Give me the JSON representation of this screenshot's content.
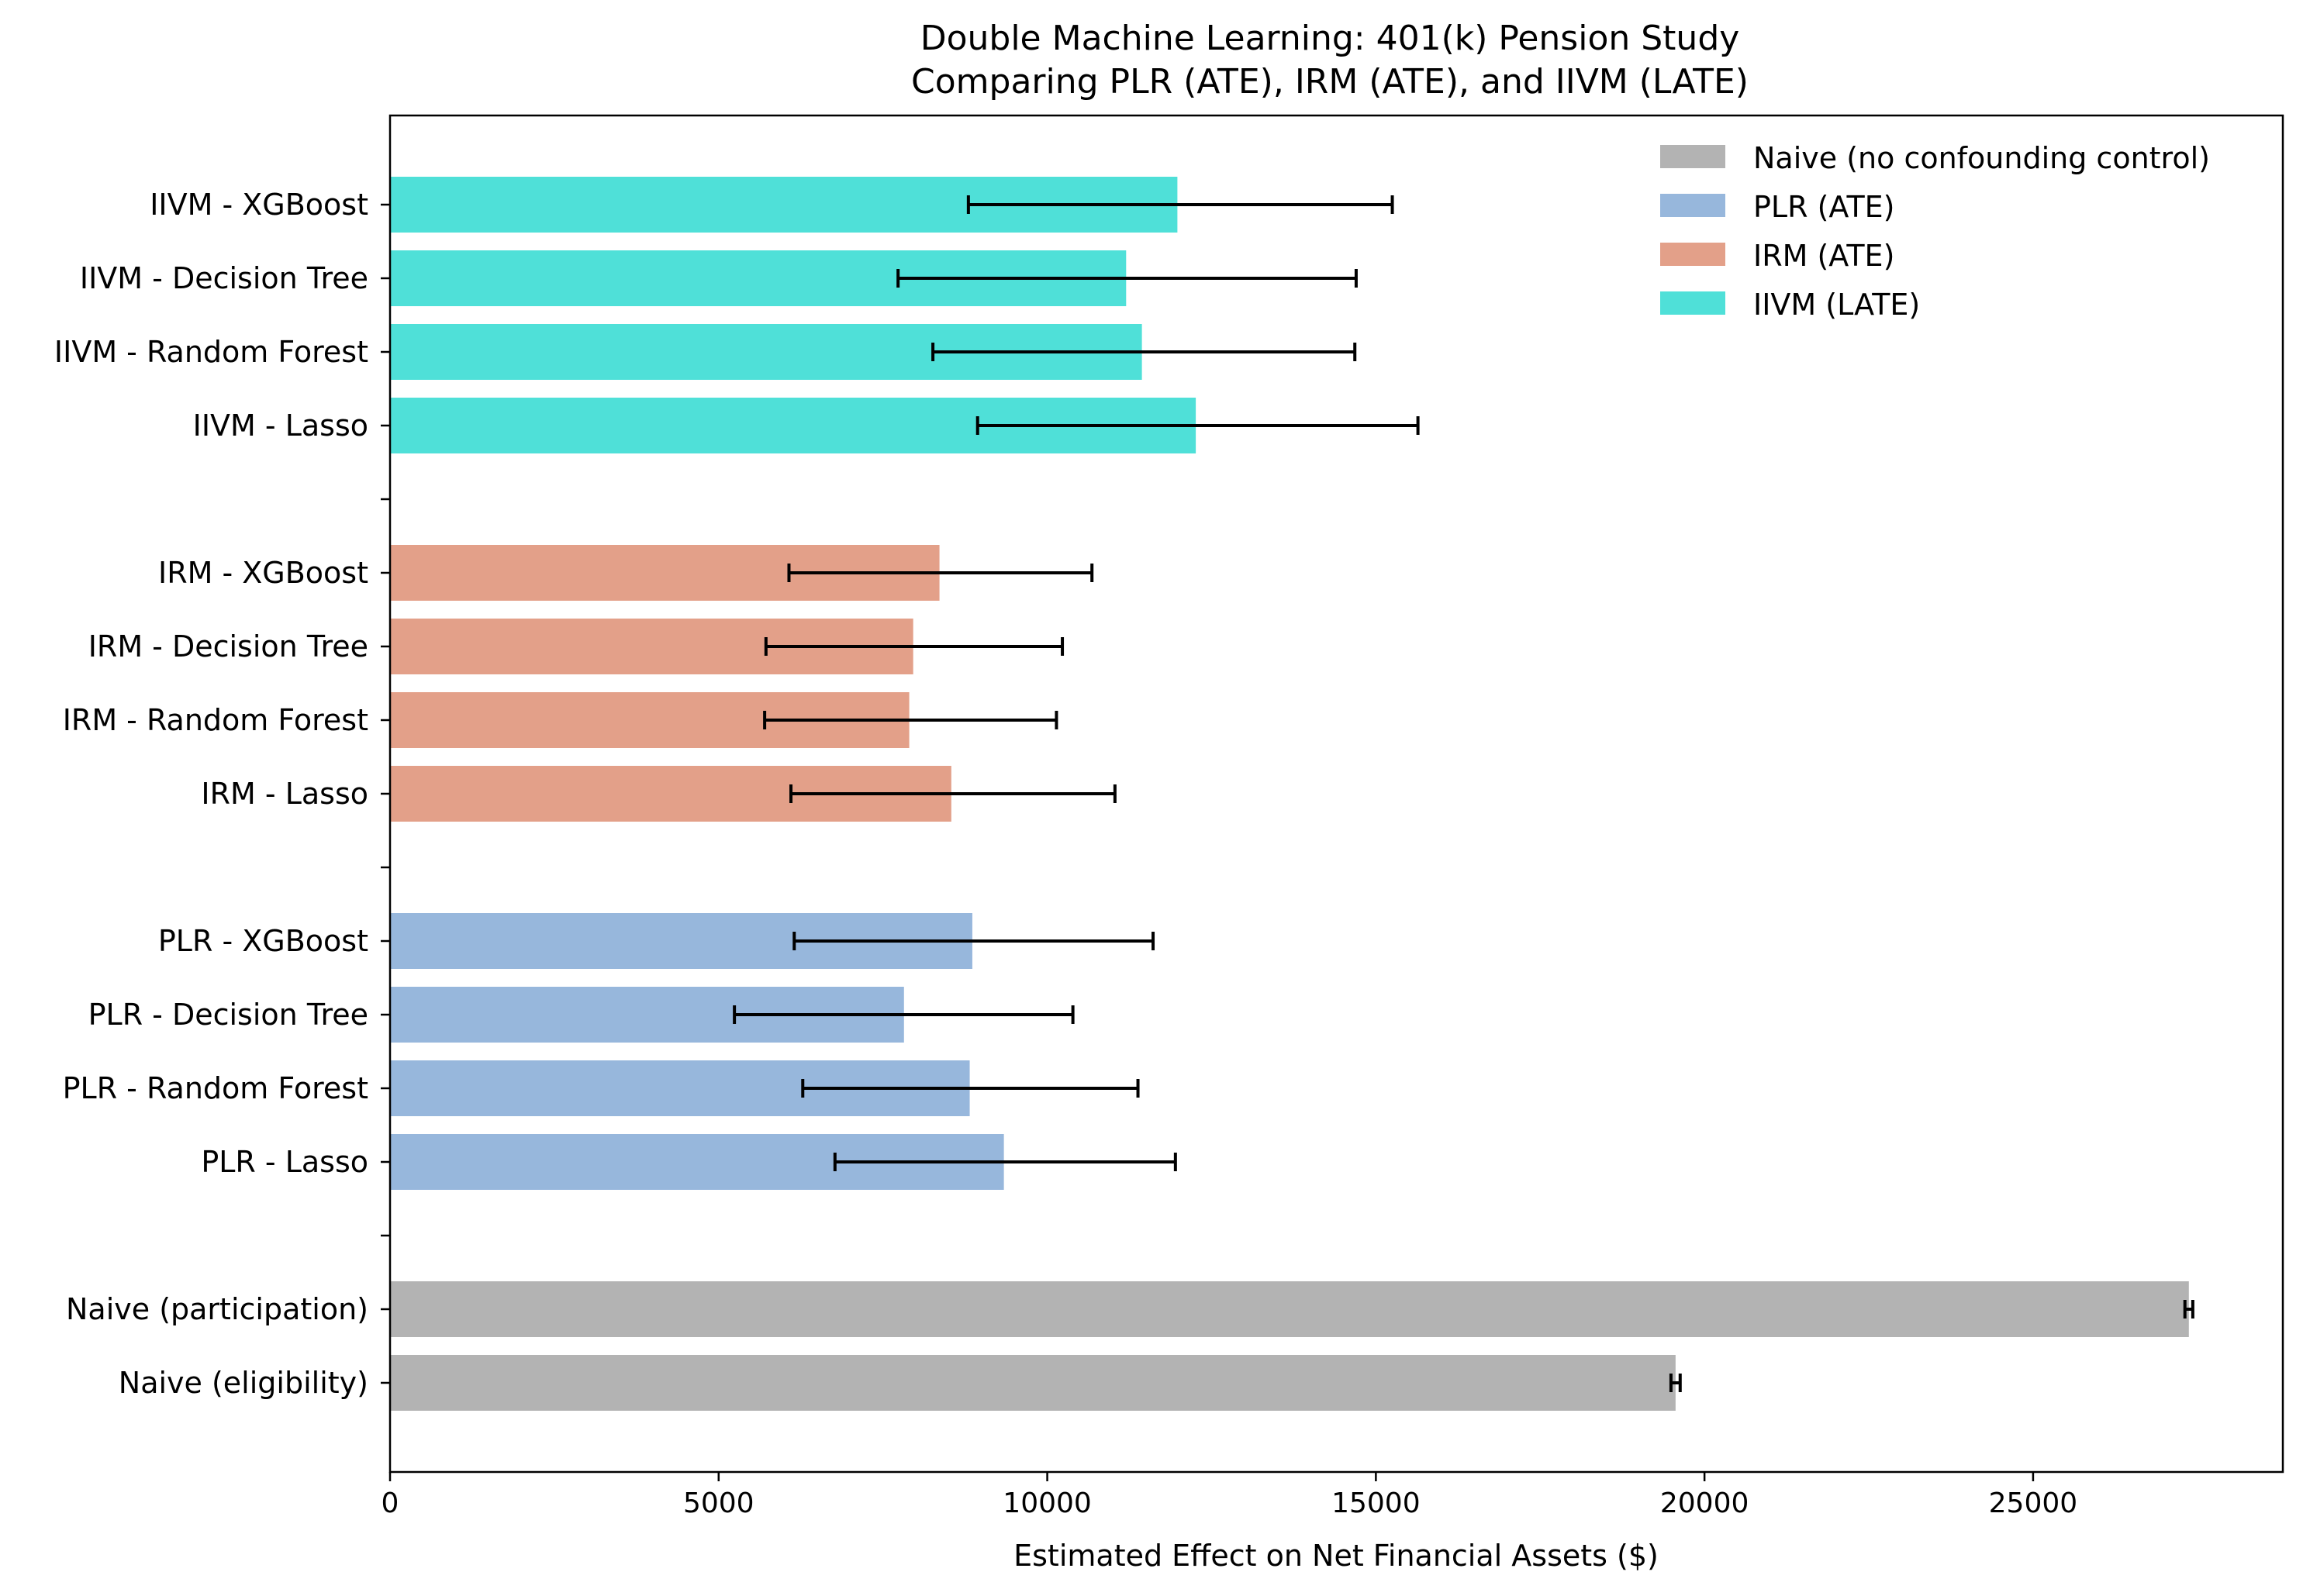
{
  "chart_data": {
    "type": "bar",
    "orientation": "horizontal",
    "title": "Double Machine Learning: 401(k) Pension Study",
    "subtitle": "Comparing PLR (ATE), IRM (ATE), and IIVM (LATE)",
    "xlabel": "Estimated Effect on Net Financial Assets ($)",
    "ylabel": "",
    "xlim": [
      0,
      28800
    ],
    "xticks": [
      "0",
      "5000",
      "10000",
      "15000",
      "20000",
      "25000"
    ],
    "grid": false,
    "legend_position": "top-right",
    "groups": [
      {
        "name": "Naive (no confounding control)",
        "color": "#b3b3b3",
        "bars": [
          {
            "label": "Naive (eligibility)",
            "value": 19560,
            "ci": [
              19490,
              19630
            ]
          },
          {
            "label": "Naive (participation)",
            "value": 27370,
            "ci": [
              27310,
              27430
            ]
          }
        ]
      },
      {
        "name": "PLR (ATE)",
        "color": "#97b7dc",
        "bars": [
          {
            "label": "PLR - Lasso",
            "value": 9340,
            "ci": [
              6770,
              11950
            ]
          },
          {
            "label": "PLR - Random Forest",
            "value": 8820,
            "ci": [
              6280,
              11380
            ]
          },
          {
            "label": "PLR - Decision Tree",
            "value": 7820,
            "ci": [
              5240,
              10390
            ]
          },
          {
            "label": "PLR - XGBoost",
            "value": 8860,
            "ci": [
              6150,
              11610
            ]
          }
        ]
      },
      {
        "name": "IRM (ATE)",
        "color": "#e3a089",
        "bars": [
          {
            "label": "IRM - Lasso",
            "value": 8540,
            "ci": [
              6100,
              11030
            ]
          },
          {
            "label": "IRM - Random Forest",
            "value": 7900,
            "ci": [
              5700,
              10140
            ]
          },
          {
            "label": "IRM - Decision Tree",
            "value": 7960,
            "ci": [
              5720,
              10230
            ]
          },
          {
            "label": "IRM - XGBoost",
            "value": 8360,
            "ci": [
              6070,
              10680
            ]
          }
        ]
      },
      {
        "name": "IIVM (LATE)",
        "color": "#4fe0d8",
        "bars": [
          {
            "label": "IIVM - Lasso",
            "value": 12260,
            "ci": [
              8940,
              15640
            ]
          },
          {
            "label": "IIVM - Random Forest",
            "value": 11440,
            "ci": [
              8260,
              14680
            ]
          },
          {
            "label": "IIVM - Decision Tree",
            "value": 11200,
            "ci": [
              7730,
              14700
            ]
          },
          {
            "label": "IIVM - XGBoost",
            "value": 11980,
            "ci": [
              8800,
              15250
            ]
          }
        ]
      }
    ]
  }
}
